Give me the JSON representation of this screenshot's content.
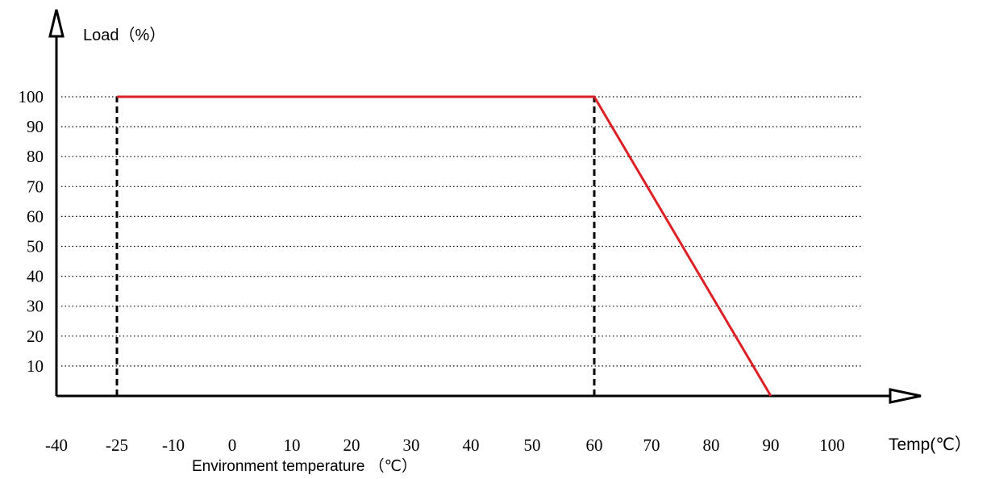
{
  "chart_data": {
    "type": "line",
    "ylabel": "Load（%）",
    "xlabel_axis_end": "Temp(℃）",
    "xlabel_below": "Environment temperature （℃）",
    "x_ticks": [
      "-40",
      "-25",
      "-10",
      "0",
      "10",
      "20",
      "30",
      "40",
      "50",
      "60",
      "70",
      "80",
      "90",
      "100"
    ],
    "x_tick_values": [
      -40,
      -25,
      -10,
      0,
      10,
      20,
      30,
      40,
      50,
      60,
      70,
      80,
      90,
      100
    ],
    "y_ticks": [
      "100",
      "90",
      "80",
      "70",
      "60",
      "50",
      "40",
      "30",
      "20",
      "10"
    ],
    "y_tick_values": [
      100,
      90,
      80,
      70,
      60,
      50,
      40,
      30,
      20,
      10
    ],
    "xlim": [
      -40,
      105
    ],
    "ylim": [
      0,
      100
    ],
    "grid": "horizontal dotted",
    "series": [
      {
        "x": [
          -25,
          60,
          90
        ],
        "y": [
          100,
          100,
          0
        ],
        "color": "#dd1f26"
      }
    ],
    "reference_lines": [
      {
        "x": -25,
        "y": [
          0,
          100
        ],
        "style": "dashed",
        "color": "#000000"
      },
      {
        "x": 60,
        "y": [
          0,
          100
        ],
        "style": "dashed",
        "color": "#000000"
      }
    ]
  }
}
